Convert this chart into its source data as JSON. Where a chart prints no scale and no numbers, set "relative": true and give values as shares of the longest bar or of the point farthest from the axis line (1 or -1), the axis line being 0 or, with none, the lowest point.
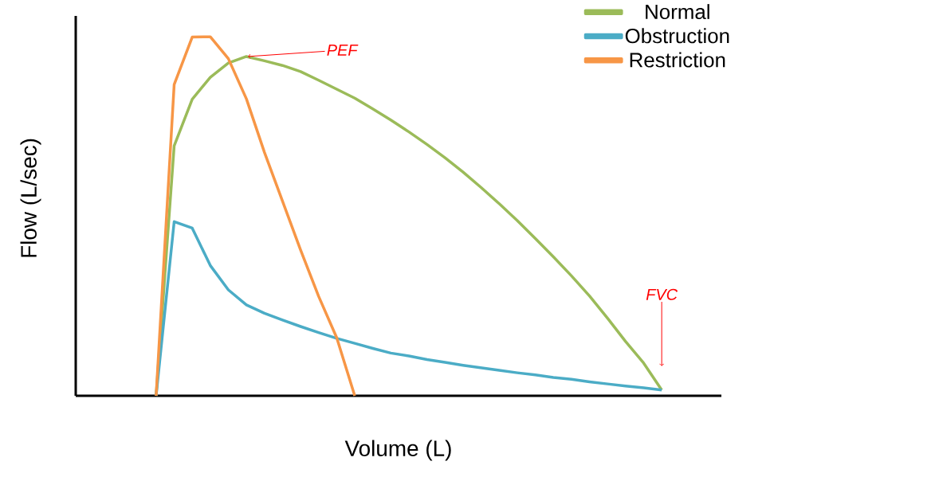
{
  "chart_data": {
    "type": "line",
    "relative": true,
    "xlabel": "Volume (L)",
    "ylabel": "Flow (L/sec)",
    "legend": "top right",
    "marker": "none",
    "line_style": "solid",
    "categories": [
      null,
      null,
      null,
      null,
      null,
      null,
      null,
      null,
      null,
      null,
      null,
      null,
      null,
      null,
      null,
      null,
      null,
      null,
      null,
      null,
      null,
      null,
      null,
      null,
      null,
      null,
      null,
      null,
      null
    ],
    "series": [
      {
        "name": "Normal",
        "color": "#9bbb59",
        "values": [
          0,
          0.696,
          0.826,
          0.887,
          0.927,
          0.945,
          0.933,
          0.92,
          0.903,
          0.879,
          0.854,
          0.829,
          0.799,
          0.768,
          0.735,
          0.7,
          0.663,
          0.623,
          0.58,
          0.535,
          0.488,
          0.438,
          0.387,
          0.334,
          0.278,
          0.216,
          0.151,
          0.091,
          0.016
        ]
      },
      {
        "name": "Obstruction",
        "color": "#4bacc6",
        "values": [
          0,
          0.485,
          0.467,
          0.363,
          0.295,
          0.253,
          0.23,
          0.211,
          0.193,
          0.176,
          0.16,
          0.146,
          0.132,
          0.119,
          0.111,
          0.101,
          0.093,
          0.085,
          0.078,
          0.071,
          0.064,
          0.058,
          0.051,
          0.046,
          0.039,
          0.033,
          0.027,
          0.022,
          0.016
        ]
      },
      {
        "name": "Restriction",
        "color": "#f79646",
        "values": [
          0,
          0.867,
          0.999,
          1,
          0.939,
          0.827,
          0.678,
          0.542,
          0.406,
          0.277,
          0.162,
          0,
          null,
          null,
          null,
          null,
          null,
          null,
          null,
          null,
          null,
          null,
          null,
          null,
          null,
          null,
          null,
          null,
          null
        ]
      }
    ],
    "annotations": [
      "PEF",
      "FVC"
    ]
  }
}
